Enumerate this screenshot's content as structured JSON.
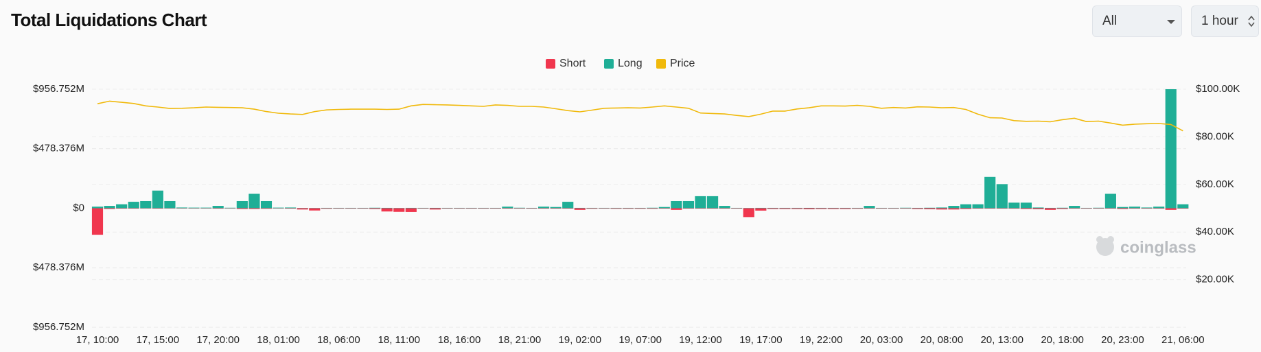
{
  "header": {
    "title": "Total Liquidations Chart"
  },
  "controls": {
    "coin_select": "All",
    "interval_select": "1 hour"
  },
  "watermark": "coinglass",
  "chart_data": {
    "type": "bar",
    "stacked": true,
    "categories": [
      "17, 10:00",
      null,
      null,
      null,
      null,
      "17, 15:00",
      null,
      null,
      null,
      null,
      "17, 20:00",
      null,
      null,
      null,
      null,
      "18, 01:00",
      null,
      null,
      null,
      null,
      "18, 06:00",
      null,
      null,
      null,
      null,
      "18, 11:00",
      null,
      null,
      null,
      null,
      "18, 16:00",
      null,
      null,
      null,
      null,
      "18, 21:00",
      null,
      null,
      null,
      null,
      "19, 02:00",
      null,
      null,
      null,
      null,
      "19, 07:00",
      null,
      null,
      null,
      null,
      "19, 12:00",
      null,
      null,
      null,
      null,
      "19, 17:00",
      null,
      null,
      null,
      null,
      "19, 22:00",
      null,
      null,
      null,
      null,
      "20, 03:00",
      null,
      null,
      null,
      null,
      "20, 08:00",
      null,
      null,
      null,
      null,
      "20, 13:00",
      null,
      null,
      null,
      null,
      "20, 18:00",
      null,
      null,
      null,
      null,
      "20, 23:00",
      null,
      null,
      null,
      null,
      "21, 06:00"
    ],
    "series": [
      {
        "name": "Short",
        "color": "#f0364e",
        "values": [
          -213,
          -6,
          -3,
          -3,
          -2,
          -3,
          -2,
          -2,
          -2,
          -2,
          -3,
          -2,
          -6,
          -6,
          -4,
          -2,
          -3,
          -10,
          -18,
          -4,
          -3,
          -3,
          -3,
          -6,
          -26,
          -29,
          -30,
          -3,
          -10,
          -3,
          -3,
          -3,
          -3,
          -3,
          -3,
          -3,
          -3,
          -3,
          -3,
          -3,
          -13,
          -4,
          -3,
          -4,
          -4,
          -4,
          -4,
          -3,
          -13,
          -3,
          -3,
          -3,
          -3,
          -3,
          -71,
          -19,
          -6,
          -6,
          -6,
          -8,
          -6,
          -6,
          -6,
          -4,
          -3,
          -3,
          -3,
          -3,
          -6,
          -8,
          -10,
          -10,
          -6,
          -3,
          -3,
          -3,
          -3,
          -6,
          -8,
          -13,
          -6,
          -3,
          -3,
          -3,
          -3,
          -6,
          -3,
          -3,
          -3,
          -13,
          -3
        ]
      },
      {
        "name": "Long",
        "color": "#1fae96",
        "values": [
          13,
          19,
          32,
          52,
          58,
          142,
          58,
          6,
          5,
          5,
          19,
          4,
          58,
          116,
          58,
          5,
          6,
          2,
          2,
          3,
          3,
          3,
          3,
          4,
          3,
          2,
          3,
          3,
          3,
          3,
          3,
          3,
          3,
          3,
          13,
          4,
          3,
          13,
          10,
          52,
          3,
          3,
          3,
          3,
          3,
          3,
          4,
          10,
          58,
          58,
          97,
          97,
          19,
          3,
          2,
          3,
          3,
          3,
          3,
          3,
          3,
          3,
          3,
          3,
          19,
          3,
          3,
          4,
          3,
          4,
          6,
          19,
          32,
          32,
          252,
          194,
          45,
          45,
          6,
          3,
          4,
          19,
          3,
          4,
          116,
          10,
          13,
          6,
          13,
          956.752,
          32
        ]
      },
      {
        "name": "Price",
        "color": "#f0b90b",
        "axis": "y2",
        "values": [
          93.9,
          95.0,
          94.5,
          94.0,
          93.0,
          92.5,
          91.9,
          92.0,
          92.2,
          92.5,
          92.4,
          92.3,
          92.2,
          91.6,
          90.6,
          89.9,
          89.6,
          89.4,
          90.6,
          91.3,
          91.5,
          91.6,
          91.6,
          91.6,
          91.5,
          91.6,
          93.0,
          93.6,
          93.5,
          93.4,
          93.2,
          93.0,
          92.8,
          93.4,
          93.2,
          92.8,
          92.8,
          92.5,
          91.8,
          91.0,
          90.5,
          91.2,
          92.0,
          92.1,
          92.2,
          92.1,
          92.5,
          93.0,
          92.5,
          92.0,
          90.0,
          89.8,
          89.6,
          89.0,
          88.5,
          89.5,
          90.8,
          90.8,
          91.7,
          92.2,
          93.0,
          93.0,
          92.9,
          93.2,
          92.8,
          92.0,
          92.3,
          92.1,
          92.6,
          92.5,
          92.2,
          92.3,
          91.5,
          89.5,
          88.0,
          87.9,
          86.8,
          86.5,
          86.6,
          86.3,
          87.2,
          87.8,
          86.4,
          86.6,
          85.8,
          84.9,
          85.3,
          85.5,
          85.6,
          85.2,
          82.5
        ]
      }
    ],
    "ylim": [
      -956.752,
      956.752
    ],
    "yticks": [
      {
        "value": 956.752,
        "label": "$956.752M"
      },
      {
        "value": 478.376,
        "label": "$478.376M"
      },
      {
        "value": 0,
        "label": "$0"
      },
      {
        "value": -478.376,
        "label": "$478.376M"
      },
      {
        "value": -956.752,
        "label": "$956.752M"
      }
    ],
    "y2lim": [
      0,
      100
    ],
    "y2ticks": [
      {
        "value": 100,
        "label": "$100.00K"
      },
      {
        "value": 80,
        "label": "$80.00K"
      },
      {
        "value": 60,
        "label": "$60.00K"
      },
      {
        "value": 40,
        "label": "$40.00K"
      },
      {
        "value": 20,
        "label": "$20.00K"
      }
    ],
    "grid": true,
    "legend": "top"
  }
}
